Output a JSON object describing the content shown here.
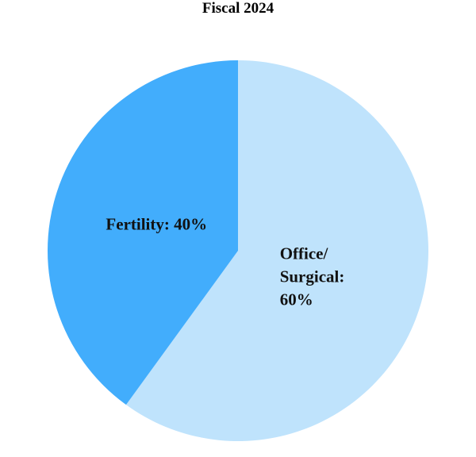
{
  "chart_data": {
    "type": "pie",
    "title": "Fiscal 2024",
    "values": [
      60,
      40
    ],
    "value_labels": [
      "Office/ Surgical: 60%",
      "Fertility: 40%"
    ],
    "colors": [
      "#bfe3fc",
      "#42adfc"
    ]
  }
}
